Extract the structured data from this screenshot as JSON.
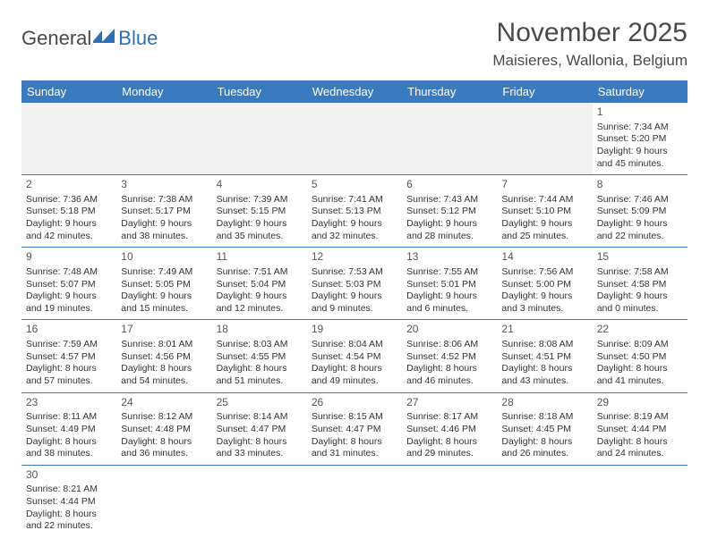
{
  "logo": {
    "text1": "General",
    "text2": "Blue",
    "color1": "#5a5a5a",
    "color2": "#2f6fb3"
  },
  "title": "November 2025",
  "location": "Maisieres, Wallonia, Belgium",
  "colors": {
    "headerBg": "#3a7bbf",
    "headerText": "#ffffff",
    "rowBorder": "#3a7bbf",
    "emptyBg": "#f1f1f1"
  },
  "dayNames": [
    "Sunday",
    "Monday",
    "Tuesday",
    "Wednesday",
    "Thursday",
    "Friday",
    "Saturday"
  ],
  "weeks": [
    [
      null,
      null,
      null,
      null,
      null,
      null,
      {
        "n": "1",
        "sr": "7:34 AM",
        "ss": "5:20 PM",
        "dl": "9 hours and 45 minutes."
      }
    ],
    [
      {
        "n": "2",
        "sr": "7:36 AM",
        "ss": "5:18 PM",
        "dl": "9 hours and 42 minutes."
      },
      {
        "n": "3",
        "sr": "7:38 AM",
        "ss": "5:17 PM",
        "dl": "9 hours and 38 minutes."
      },
      {
        "n": "4",
        "sr": "7:39 AM",
        "ss": "5:15 PM",
        "dl": "9 hours and 35 minutes."
      },
      {
        "n": "5",
        "sr": "7:41 AM",
        "ss": "5:13 PM",
        "dl": "9 hours and 32 minutes."
      },
      {
        "n": "6",
        "sr": "7:43 AM",
        "ss": "5:12 PM",
        "dl": "9 hours and 28 minutes."
      },
      {
        "n": "7",
        "sr": "7:44 AM",
        "ss": "5:10 PM",
        "dl": "9 hours and 25 minutes."
      },
      {
        "n": "8",
        "sr": "7:46 AM",
        "ss": "5:09 PM",
        "dl": "9 hours and 22 minutes."
      }
    ],
    [
      {
        "n": "9",
        "sr": "7:48 AM",
        "ss": "5:07 PM",
        "dl": "9 hours and 19 minutes."
      },
      {
        "n": "10",
        "sr": "7:49 AM",
        "ss": "5:05 PM",
        "dl": "9 hours and 15 minutes."
      },
      {
        "n": "11",
        "sr": "7:51 AM",
        "ss": "5:04 PM",
        "dl": "9 hours and 12 minutes."
      },
      {
        "n": "12",
        "sr": "7:53 AM",
        "ss": "5:03 PM",
        "dl": "9 hours and 9 minutes."
      },
      {
        "n": "13",
        "sr": "7:55 AM",
        "ss": "5:01 PM",
        "dl": "9 hours and 6 minutes."
      },
      {
        "n": "14",
        "sr": "7:56 AM",
        "ss": "5:00 PM",
        "dl": "9 hours and 3 minutes."
      },
      {
        "n": "15",
        "sr": "7:58 AM",
        "ss": "4:58 PM",
        "dl": "9 hours and 0 minutes."
      }
    ],
    [
      {
        "n": "16",
        "sr": "7:59 AM",
        "ss": "4:57 PM",
        "dl": "8 hours and 57 minutes."
      },
      {
        "n": "17",
        "sr": "8:01 AM",
        "ss": "4:56 PM",
        "dl": "8 hours and 54 minutes."
      },
      {
        "n": "18",
        "sr": "8:03 AM",
        "ss": "4:55 PM",
        "dl": "8 hours and 51 minutes."
      },
      {
        "n": "19",
        "sr": "8:04 AM",
        "ss": "4:54 PM",
        "dl": "8 hours and 49 minutes."
      },
      {
        "n": "20",
        "sr": "8:06 AM",
        "ss": "4:52 PM",
        "dl": "8 hours and 46 minutes."
      },
      {
        "n": "21",
        "sr": "8:08 AM",
        "ss": "4:51 PM",
        "dl": "8 hours and 43 minutes."
      },
      {
        "n": "22",
        "sr": "8:09 AM",
        "ss": "4:50 PM",
        "dl": "8 hours and 41 minutes."
      }
    ],
    [
      {
        "n": "23",
        "sr": "8:11 AM",
        "ss": "4:49 PM",
        "dl": "8 hours and 38 minutes."
      },
      {
        "n": "24",
        "sr": "8:12 AM",
        "ss": "4:48 PM",
        "dl": "8 hours and 36 minutes."
      },
      {
        "n": "25",
        "sr": "8:14 AM",
        "ss": "4:47 PM",
        "dl": "8 hours and 33 minutes."
      },
      {
        "n": "26",
        "sr": "8:15 AM",
        "ss": "4:47 PM",
        "dl": "8 hours and 31 minutes."
      },
      {
        "n": "27",
        "sr": "8:17 AM",
        "ss": "4:46 PM",
        "dl": "8 hours and 29 minutes."
      },
      {
        "n": "28",
        "sr": "8:18 AM",
        "ss": "4:45 PM",
        "dl": "8 hours and 26 minutes."
      },
      {
        "n": "29",
        "sr": "8:19 AM",
        "ss": "4:44 PM",
        "dl": "8 hours and 24 minutes."
      }
    ],
    [
      {
        "n": "30",
        "sr": "8:21 AM",
        "ss": "4:44 PM",
        "dl": "8 hours and 22 minutes."
      },
      null,
      null,
      null,
      null,
      null,
      null
    ]
  ],
  "labels": {
    "sunrise": "Sunrise:",
    "sunset": "Sunset:",
    "daylight": "Daylight:"
  }
}
